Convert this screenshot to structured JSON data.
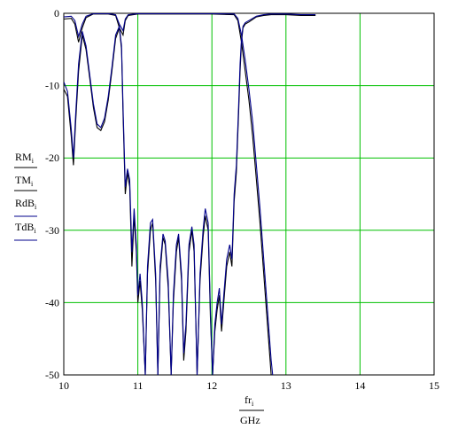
{
  "chart_data": {
    "type": "line",
    "xlim": [
      10,
      15
    ],
    "ylim": [
      -50,
      0
    ],
    "x_ticks": [
      "10",
      "11",
      "12",
      "13",
      "14",
      "15"
    ],
    "y_ticks": [
      "0",
      "-10",
      "-20",
      "-30",
      "-40",
      "-50"
    ],
    "grid": true,
    "grid_color": "#00c000",
    "xlabel": {
      "num": "fr",
      "sub": "i",
      "den": "GHz"
    },
    "ylabel": [
      {
        "text": "RM",
        "sub": "i"
      },
      {
        "text": "TM",
        "sub": "i"
      },
      {
        "text": "RdB",
        "sub": "i"
      },
      {
        "text": "TdB",
        "sub": "i"
      }
    ],
    "series": [
      {
        "color": "#000000",
        "reflection": [
          [
            10,
            -10.5
          ],
          [
            10.05,
            -11.5
          ],
          [
            10.1,
            -17
          ],
          [
            10.13,
            -21
          ],
          [
            10.16,
            -15
          ],
          [
            10.2,
            -8
          ],
          [
            10.25,
            -3
          ],
          [
            10.3,
            -5
          ],
          [
            10.35,
            -9
          ],
          [
            10.4,
            -13
          ],
          [
            10.45,
            -15.8
          ],
          [
            10.5,
            -16.2
          ],
          [
            10.55,
            -15
          ],
          [
            10.6,
            -12
          ],
          [
            10.65,
            -8
          ],
          [
            10.7,
            -3.5
          ],
          [
            10.75,
            -2
          ],
          [
            10.78,
            -5
          ],
          [
            10.8,
            -14
          ],
          [
            10.83,
            -25
          ],
          [
            10.86,
            -22
          ],
          [
            10.89,
            -24
          ],
          [
            10.92,
            -35
          ],
          [
            10.95,
            -28
          ],
          [
            10.98,
            -33
          ],
          [
            11.0,
            -40
          ],
          [
            11.03,
            -37
          ],
          [
            11.06,
            -41
          ],
          [
            11.1,
            -50
          ],
          [
            11.13,
            -36
          ],
          [
            11.17,
            -30
          ],
          [
            11.2,
            -29
          ],
          [
            11.24,
            -37
          ],
          [
            11.27,
            -50
          ],
          [
            11.3,
            -36
          ],
          [
            11.34,
            -31
          ],
          [
            11.37,
            -32
          ],
          [
            11.41,
            -38
          ],
          [
            11.45,
            -50
          ],
          [
            11.48,
            -40
          ],
          [
            11.52,
            -33
          ],
          [
            11.55,
            -31
          ],
          [
            11.59,
            -37
          ],
          [
            11.62,
            -48
          ],
          [
            11.65,
            -44
          ],
          [
            11.69,
            -33
          ],
          [
            11.73,
            -30
          ],
          [
            11.76,
            -33
          ],
          [
            11.8,
            -50
          ],
          [
            11.84,
            -37
          ],
          [
            11.88,
            -31
          ],
          [
            11.91,
            -28
          ],
          [
            11.95,
            -30
          ],
          [
            11.98,
            -42
          ],
          [
            12.01,
            -50
          ],
          [
            12.04,
            -44
          ],
          [
            12.07,
            -41
          ],
          [
            12.1,
            -39
          ],
          [
            12.13,
            -44
          ],
          [
            12.16,
            -40
          ],
          [
            12.2,
            -35
          ],
          [
            12.24,
            -33
          ],
          [
            12.27,
            -35
          ],
          [
            12.3,
            -26
          ],
          [
            12.33,
            -22
          ],
          [
            12.36,
            -14
          ],
          [
            12.38,
            -8
          ],
          [
            12.4,
            -4
          ],
          [
            12.42,
            -2
          ],
          [
            12.45,
            -1.5
          ],
          [
            12.5,
            -1.2
          ],
          [
            12.6,
            -0.5
          ],
          [
            12.7,
            -0.3
          ],
          [
            12.8,
            -0.2
          ],
          [
            13.0,
            -0.2
          ],
          [
            13.2,
            -0.3
          ],
          [
            13.4,
            -0.3
          ]
        ],
        "transmission": [
          [
            10,
            -0.8
          ],
          [
            10.1,
            -0.7
          ],
          [
            10.15,
            -1.5
          ],
          [
            10.2,
            -4
          ],
          [
            10.25,
            -2
          ],
          [
            10.3,
            -0.6
          ],
          [
            10.4,
            -0.1
          ],
          [
            10.6,
            -0.1
          ],
          [
            10.7,
            -0.3
          ],
          [
            10.75,
            -2
          ],
          [
            10.8,
            -3
          ],
          [
            10.83,
            -1
          ],
          [
            10.87,
            -0.3
          ],
          [
            11,
            -0.1
          ],
          [
            12,
            -0.1
          ],
          [
            12.3,
            -0.2
          ],
          [
            12.35,
            -1
          ],
          [
            12.4,
            -4
          ],
          [
            12.45,
            -8
          ],
          [
            12.5,
            -12
          ],
          [
            12.55,
            -17
          ],
          [
            12.6,
            -23
          ],
          [
            12.65,
            -29
          ],
          [
            12.7,
            -36
          ],
          [
            12.75,
            -43
          ],
          [
            12.8,
            -50
          ]
        ]
      },
      {
        "color": "#00008b",
        "reflection": [
          [
            10,
            -9.5
          ],
          [
            10.05,
            -10.8
          ],
          [
            10.1,
            -16
          ],
          [
            10.13,
            -20
          ],
          [
            10.16,
            -14
          ],
          [
            10.2,
            -7
          ],
          [
            10.25,
            -2.5
          ],
          [
            10.3,
            -4.5
          ],
          [
            10.35,
            -8.5
          ],
          [
            10.4,
            -12.5
          ],
          [
            10.45,
            -15.3
          ],
          [
            10.5,
            -15.8
          ],
          [
            10.55,
            -14.5
          ],
          [
            10.6,
            -11.5
          ],
          [
            10.65,
            -7.5
          ],
          [
            10.7,
            -3
          ],
          [
            10.75,
            -1.8
          ],
          [
            10.78,
            -4.5
          ],
          [
            10.8,
            -13
          ],
          [
            10.83,
            -24
          ],
          [
            10.86,
            -21.5
          ],
          [
            10.89,
            -23
          ],
          [
            10.92,
            -33
          ],
          [
            10.95,
            -27
          ],
          [
            10.98,
            -32
          ],
          [
            11.0,
            -39
          ],
          [
            11.03,
            -36
          ],
          [
            11.06,
            -40
          ],
          [
            11.1,
            -50
          ],
          [
            11.13,
            -35
          ],
          [
            11.17,
            -29
          ],
          [
            11.2,
            -28.5
          ],
          [
            11.24,
            -36
          ],
          [
            11.27,
            -50
          ],
          [
            11.3,
            -35
          ],
          [
            11.34,
            -30.5
          ],
          [
            11.37,
            -31.5
          ],
          [
            11.41,
            -37
          ],
          [
            11.45,
            -50
          ],
          [
            11.48,
            -39
          ],
          [
            11.52,
            -32
          ],
          [
            11.55,
            -30.5
          ],
          [
            11.59,
            -36
          ],
          [
            11.62,
            -47
          ],
          [
            11.65,
            -43
          ],
          [
            11.69,
            -32
          ],
          [
            11.73,
            -29.5
          ],
          [
            11.76,
            -32
          ],
          [
            11.8,
            -50
          ],
          [
            11.84,
            -36
          ],
          [
            11.88,
            -30
          ],
          [
            11.91,
            -27
          ],
          [
            11.95,
            -29
          ],
          [
            11.98,
            -41
          ],
          [
            12.01,
            -50
          ],
          [
            12.04,
            -43
          ],
          [
            12.07,
            -40
          ],
          [
            12.1,
            -38
          ],
          [
            12.13,
            -43
          ],
          [
            12.16,
            -39
          ],
          [
            12.2,
            -34
          ],
          [
            12.24,
            -32
          ],
          [
            12.27,
            -34
          ],
          [
            12.3,
            -25
          ],
          [
            12.33,
            -21
          ],
          [
            12.36,
            -13
          ],
          [
            12.38,
            -7
          ],
          [
            12.4,
            -3.5
          ],
          [
            12.42,
            -1.8
          ],
          [
            12.45,
            -1.3
          ],
          [
            12.5,
            -1
          ],
          [
            12.6,
            -0.4
          ],
          [
            12.7,
            -0.2
          ],
          [
            12.8,
            -0.1
          ],
          [
            13.0,
            -0.1
          ],
          [
            13.2,
            -0.2
          ],
          [
            13.4,
            -0.2
          ]
        ],
        "transmission": [
          [
            10,
            -0.5
          ],
          [
            10.1,
            -0.4
          ],
          [
            10.15,
            -1
          ],
          [
            10.2,
            -3.2
          ],
          [
            10.25,
            -1.5
          ],
          [
            10.3,
            -0.4
          ],
          [
            10.4,
            -0.05
          ],
          [
            10.6,
            -0.05
          ],
          [
            10.7,
            -0.2
          ],
          [
            10.75,
            -1.5
          ],
          [
            10.8,
            -2.4
          ],
          [
            10.83,
            -0.8
          ],
          [
            10.87,
            -0.2
          ],
          [
            11,
            -0.05
          ],
          [
            12,
            -0.05
          ],
          [
            12.3,
            -0.1
          ],
          [
            12.35,
            -0.7
          ],
          [
            12.4,
            -3
          ],
          [
            12.45,
            -6.5
          ],
          [
            12.5,
            -10.5
          ],
          [
            12.55,
            -15
          ],
          [
            12.6,
            -21
          ],
          [
            12.65,
            -27
          ],
          [
            12.7,
            -34
          ],
          [
            12.75,
            -41
          ],
          [
            12.8,
            -48
          ],
          [
            12.82,
            -50
          ]
        ]
      }
    ]
  }
}
